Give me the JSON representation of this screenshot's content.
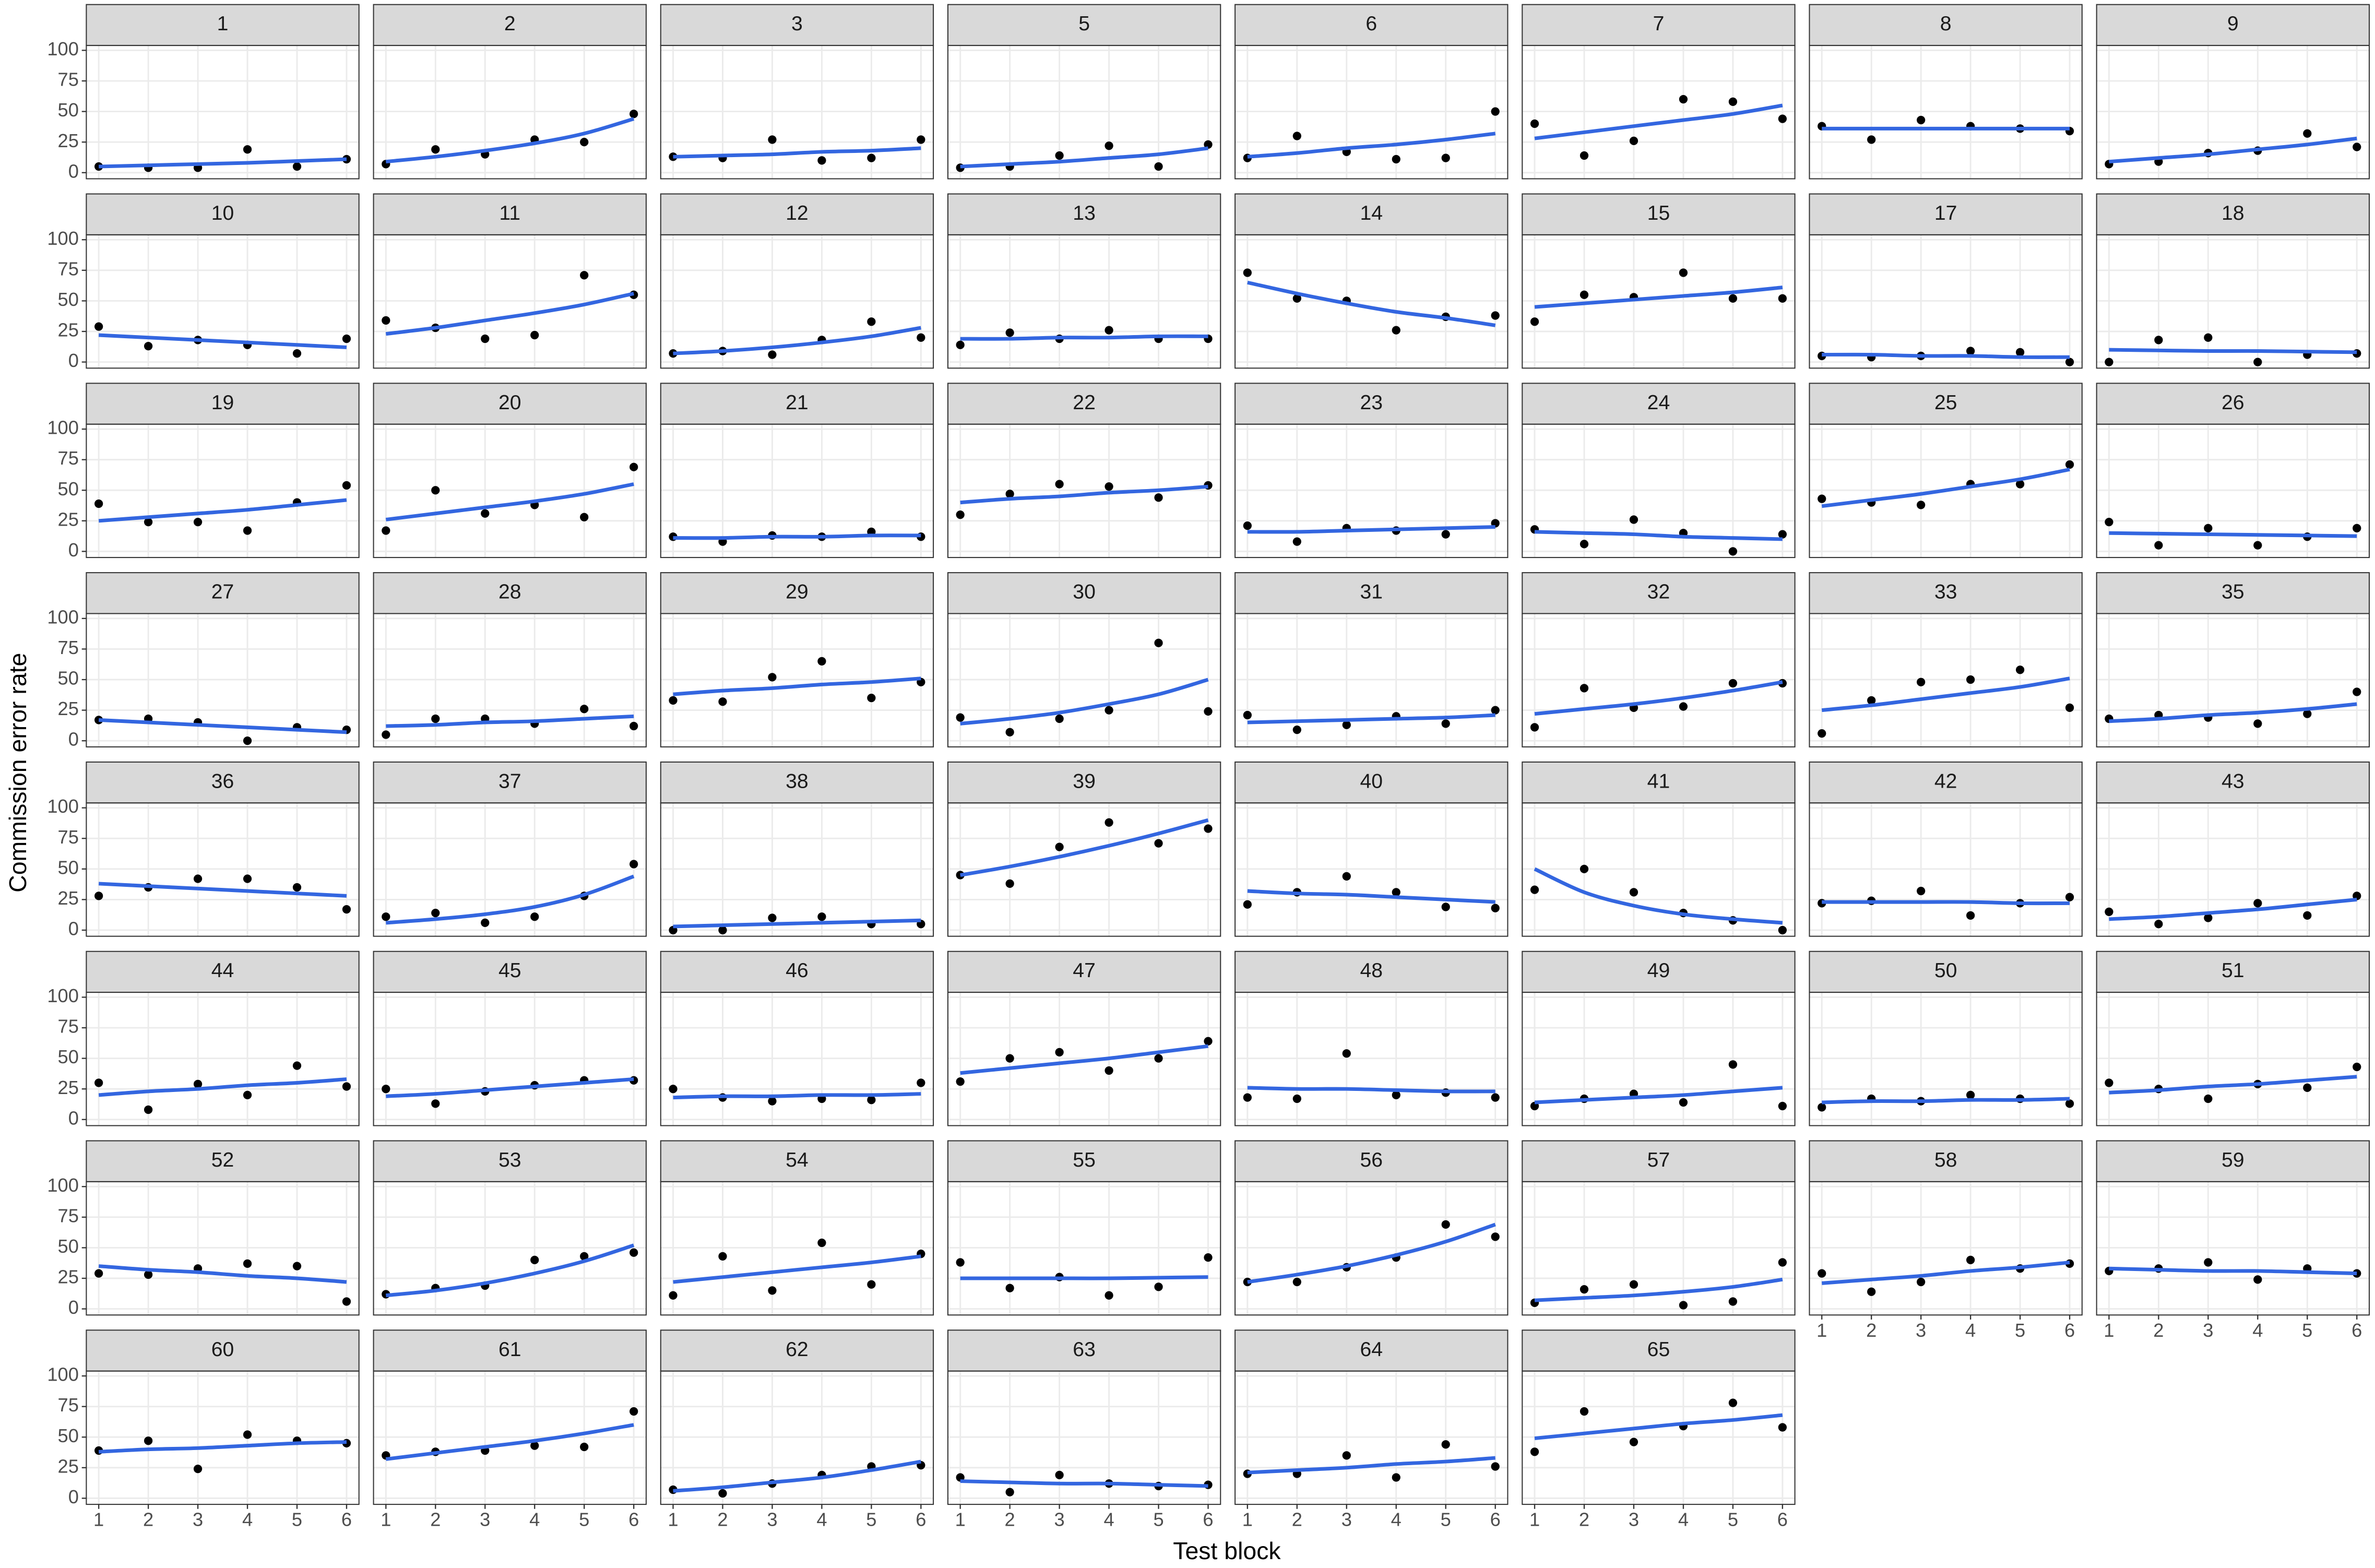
{
  "chart_data": {
    "type": "faceted-scatter",
    "x_label": "Test block",
    "y_label": "Commission error rate",
    "x": [
      1,
      2,
      3,
      4,
      5,
      6
    ],
    "xlim": [
      0.75,
      6.25
    ],
    "xticks": [
      1,
      2,
      3,
      4,
      5,
      6
    ],
    "ylim": [
      -5,
      104
    ],
    "yticks": [
      0,
      25,
      50,
      75,
      100
    ],
    "grid": true,
    "point_color": "#000000",
    "fit_color": "#3366e0",
    "panels": [
      {
        "title": "1",
        "values": [
          5,
          4,
          4,
          19,
          5,
          11
        ],
        "fit": [
          5,
          6,
          7,
          8,
          9.5,
          11
        ]
      },
      {
        "title": "2",
        "values": [
          7,
          19,
          15,
          27,
          25,
          48
        ],
        "fit": [
          9,
          13,
          18,
          24,
          32,
          44
        ]
      },
      {
        "title": "3",
        "values": [
          13,
          12,
          27,
          10,
          12,
          27
        ],
        "fit": [
          13,
          14,
          15,
          17,
          18,
          20
        ]
      },
      {
        "title": "5",
        "values": [
          4,
          5,
          14,
          22,
          5,
          23
        ],
        "fit": [
          5,
          7,
          9,
          12,
          15,
          20
        ]
      },
      {
        "title": "6",
        "values": [
          12,
          30,
          17,
          11,
          12,
          50
        ],
        "fit": [
          13,
          16,
          20,
          23,
          27,
          32
        ]
      },
      {
        "title": "7",
        "values": [
          40,
          14,
          26,
          60,
          58,
          44
        ],
        "fit": [
          28,
          33,
          38,
          43,
          48,
          55
        ]
      },
      {
        "title": "8",
        "values": [
          38,
          27,
          43,
          38,
          36,
          34
        ],
        "fit": [
          36,
          36,
          36,
          36,
          36,
          36
        ]
      },
      {
        "title": "9",
        "values": [
          7,
          9,
          16,
          18,
          32,
          21
        ],
        "fit": [
          9,
          12,
          15,
          19,
          23,
          28
        ]
      },
      {
        "title": "10",
        "values": [
          29,
          13,
          18,
          14,
          7,
          19
        ],
        "fit": [
          22,
          20,
          18,
          16,
          14,
          12
        ]
      },
      {
        "title": "11",
        "values": [
          34,
          28,
          19,
          22,
          71,
          55
        ],
        "fit": [
          23,
          28,
          34,
          40,
          47,
          56
        ]
      },
      {
        "title": "12",
        "values": [
          7,
          9,
          6,
          18,
          33,
          20
        ],
        "fit": [
          7,
          9,
          12,
          16,
          21,
          28
        ]
      },
      {
        "title": "13",
        "values": [
          14,
          24,
          19,
          26,
          19,
          19
        ],
        "fit": [
          19,
          19,
          20,
          20,
          21,
          21
        ]
      },
      {
        "title": "14",
        "values": [
          73,
          52,
          50,
          26,
          37,
          38
        ],
        "fit": [
          65,
          56,
          48,
          41,
          36,
          30
        ]
      },
      {
        "title": "15",
        "values": [
          33,
          55,
          53,
          73,
          52,
          52
        ],
        "fit": [
          45,
          48,
          51,
          54,
          57,
          61
        ]
      },
      {
        "title": "17",
        "values": [
          5,
          4,
          5,
          9,
          8,
          0
        ],
        "fit": [
          6,
          6,
          5,
          5,
          4,
          4
        ]
      },
      {
        "title": "18",
        "values": [
          0,
          18,
          20,
          0,
          6,
          7
        ],
        "fit": [
          10,
          9.5,
          9,
          9,
          8.5,
          8
        ]
      },
      {
        "title": "19",
        "values": [
          39,
          24,
          24,
          17,
          40,
          54
        ],
        "fit": [
          25,
          28,
          31,
          34,
          38,
          42
        ]
      },
      {
        "title": "20",
        "values": [
          17,
          50,
          31,
          38,
          28,
          69
        ],
        "fit": [
          26,
          31,
          36,
          41,
          47,
          55
        ]
      },
      {
        "title": "21",
        "values": [
          12,
          8,
          13,
          12,
          16,
          12
        ],
        "fit": [
          11,
          11,
          12,
          12,
          13,
          13
        ]
      },
      {
        "title": "22",
        "values": [
          30,
          47,
          55,
          53,
          44,
          54
        ],
        "fit": [
          40,
          43,
          45,
          48,
          50,
          53
        ]
      },
      {
        "title": "23",
        "values": [
          21,
          8,
          19,
          17,
          14,
          23
        ],
        "fit": [
          16,
          16,
          17,
          18,
          19,
          20
        ]
      },
      {
        "title": "24",
        "values": [
          18,
          6,
          26,
          15,
          0,
          14
        ],
        "fit": [
          16,
          15,
          14,
          12,
          11,
          10
        ]
      },
      {
        "title": "25",
        "values": [
          43,
          40,
          38,
          55,
          55,
          71
        ],
        "fit": [
          37,
          42,
          47,
          53,
          59,
          67
        ]
      },
      {
        "title": "26",
        "values": [
          24,
          5,
          19,
          5,
          12,
          19
        ],
        "fit": [
          15,
          14.5,
          14,
          13.5,
          13,
          12.5
        ]
      },
      {
        "title": "27",
        "values": [
          17,
          18,
          15,
          0,
          11,
          9
        ],
        "fit": [
          17,
          15,
          13,
          11,
          9,
          7
        ]
      },
      {
        "title": "28",
        "values": [
          5,
          18,
          18,
          14,
          26,
          12
        ],
        "fit": [
          12,
          13,
          15,
          16,
          18,
          20
        ]
      },
      {
        "title": "29",
        "values": [
          33,
          32,
          52,
          65,
          35,
          48
        ],
        "fit": [
          38,
          41,
          43,
          46,
          48,
          51
        ]
      },
      {
        "title": "30",
        "values": [
          19,
          7,
          18,
          25,
          80,
          24
        ],
        "fit": [
          14,
          18,
          23,
          30,
          38,
          50
        ]
      },
      {
        "title": "31",
        "values": [
          21,
          9,
          13,
          20,
          14,
          25
        ],
        "fit": [
          15,
          16,
          17,
          18,
          19,
          21
        ]
      },
      {
        "title": "32",
        "values": [
          11,
          43,
          27,
          28,
          47,
          47
        ],
        "fit": [
          22,
          26,
          30,
          35,
          41,
          48
        ]
      },
      {
        "title": "33",
        "values": [
          6,
          33,
          48,
          50,
          58,
          27
        ],
        "fit": [
          25,
          29,
          34,
          39,
          44,
          51
        ]
      },
      {
        "title": "35",
        "values": [
          18,
          21,
          19,
          14,
          22,
          40
        ],
        "fit": [
          16,
          18,
          21,
          23,
          26,
          30
        ]
      },
      {
        "title": "36",
        "values": [
          28,
          35,
          42,
          42,
          35,
          17
        ],
        "fit": [
          38,
          36,
          34,
          32,
          30,
          28
        ]
      },
      {
        "title": "37",
        "values": [
          11,
          14,
          6,
          11,
          28,
          54
        ],
        "fit": [
          6,
          9,
          13,
          19,
          29,
          44
        ]
      },
      {
        "title": "38",
        "values": [
          0,
          0,
          10,
          11,
          5,
          5
        ],
        "fit": [
          3,
          4,
          5,
          6,
          7,
          8
        ]
      },
      {
        "title": "39",
        "values": [
          45,
          38,
          68,
          88,
          71,
          83
        ],
        "fit": [
          45,
          52,
          60,
          69,
          79,
          90
        ]
      },
      {
        "title": "40",
        "values": [
          21,
          31,
          44,
          31,
          19,
          18
        ],
        "fit": [
          32,
          30,
          29,
          27,
          25,
          23
        ]
      },
      {
        "title": "41",
        "values": [
          33,
          50,
          31,
          14,
          8,
          0
        ],
        "fit": [
          50,
          31,
          20,
          13,
          9,
          6
        ]
      },
      {
        "title": "42",
        "values": [
          22,
          24,
          32,
          12,
          22,
          27
        ],
        "fit": [
          23,
          23,
          23,
          23,
          22,
          22
        ]
      },
      {
        "title": "43",
        "values": [
          15,
          5,
          10,
          22,
          12,
          28
        ],
        "fit": [
          9,
          11,
          14,
          17,
          21,
          25
        ]
      },
      {
        "title": "44",
        "values": [
          30,
          8,
          29,
          20,
          44,
          27
        ],
        "fit": [
          20,
          23,
          25,
          28,
          30,
          33
        ]
      },
      {
        "title": "45",
        "values": [
          25,
          13,
          23,
          28,
          32,
          32
        ],
        "fit": [
          19,
          21,
          24,
          27,
          30,
          33
        ]
      },
      {
        "title": "46",
        "values": [
          25,
          18,
          15,
          17,
          16,
          30
        ],
        "fit": [
          18,
          19,
          19,
          20,
          20,
          21
        ]
      },
      {
        "title": "47",
        "values": [
          31,
          50,
          55,
          40,
          50,
          64
        ],
        "fit": [
          38,
          42,
          46,
          50,
          55,
          60
        ]
      },
      {
        "title": "48",
        "values": [
          18,
          17,
          54,
          20,
          22,
          18
        ],
        "fit": [
          26,
          25,
          25,
          24,
          23,
          23
        ]
      },
      {
        "title": "49",
        "values": [
          11,
          17,
          21,
          14,
          45,
          11
        ],
        "fit": [
          14,
          16,
          18,
          20,
          23,
          26
        ]
      },
      {
        "title": "50",
        "values": [
          10,
          17,
          15,
          20,
          17,
          13
        ],
        "fit": [
          14,
          15,
          15,
          16,
          16,
          17
        ]
      },
      {
        "title": "51",
        "values": [
          30,
          25,
          17,
          29,
          26,
          43
        ],
        "fit": [
          22,
          24,
          27,
          29,
          32,
          35
        ]
      },
      {
        "title": "52",
        "values": [
          29,
          28,
          33,
          37,
          35,
          6
        ],
        "fit": [
          35,
          32,
          30,
          27,
          25,
          22
        ]
      },
      {
        "title": "53",
        "values": [
          12,
          17,
          19,
          40,
          43,
          46
        ],
        "fit": [
          11,
          15,
          21,
          29,
          39,
          52
        ]
      },
      {
        "title": "54",
        "values": [
          11,
          43,
          15,
          54,
          20,
          45
        ],
        "fit": [
          22,
          26,
          30,
          34,
          38,
          43
        ]
      },
      {
        "title": "55",
        "values": [
          38,
          17,
          26,
          11,
          18,
          42
        ],
        "fit": [
          25,
          25,
          25,
          25,
          25.5,
          26
        ]
      },
      {
        "title": "56",
        "values": [
          22,
          22,
          34,
          42,
          69,
          59
        ],
        "fit": [
          22,
          28,
          35,
          44,
          55,
          69
        ]
      },
      {
        "title": "57",
        "values": [
          5,
          16,
          20,
          3,
          6,
          38
        ],
        "fit": [
          7,
          9,
          11,
          14,
          18,
          24
        ]
      },
      {
        "title": "58",
        "values": [
          29,
          14,
          22,
          40,
          33,
          37
        ],
        "fit": [
          21,
          24,
          27,
          31,
          34,
          38
        ]
      },
      {
        "title": "59",
        "values": [
          31,
          33,
          38,
          24,
          33,
          29
        ],
        "fit": [
          33,
          32,
          31,
          31,
          30,
          29
        ]
      },
      {
        "title": "60",
        "values": [
          39,
          47,
          24,
          52,
          47,
          45
        ],
        "fit": [
          38,
          40,
          41,
          43,
          45,
          46
        ]
      },
      {
        "title": "61",
        "values": [
          35,
          38,
          39,
          43,
          42,
          71
        ],
        "fit": [
          32,
          37,
          42,
          47,
          53,
          60
        ]
      },
      {
        "title": "62",
        "values": [
          7,
          4,
          12,
          19,
          26,
          27
        ],
        "fit": [
          6,
          9,
          13,
          17,
          23,
          30
        ]
      },
      {
        "title": "63",
        "values": [
          17,
          5,
          19,
          12,
          10,
          11
        ],
        "fit": [
          14,
          13,
          12,
          12,
          11,
          10
        ]
      },
      {
        "title": "64",
        "values": [
          20,
          20,
          35,
          17,
          44,
          26
        ],
        "fit": [
          21,
          23,
          25,
          28,
          30,
          33
        ]
      },
      {
        "title": "65",
        "values": [
          38,
          71,
          46,
          59,
          78,
          58
        ],
        "fit": [
          49,
          53,
          57,
          61,
          64,
          68
        ]
      }
    ]
  }
}
